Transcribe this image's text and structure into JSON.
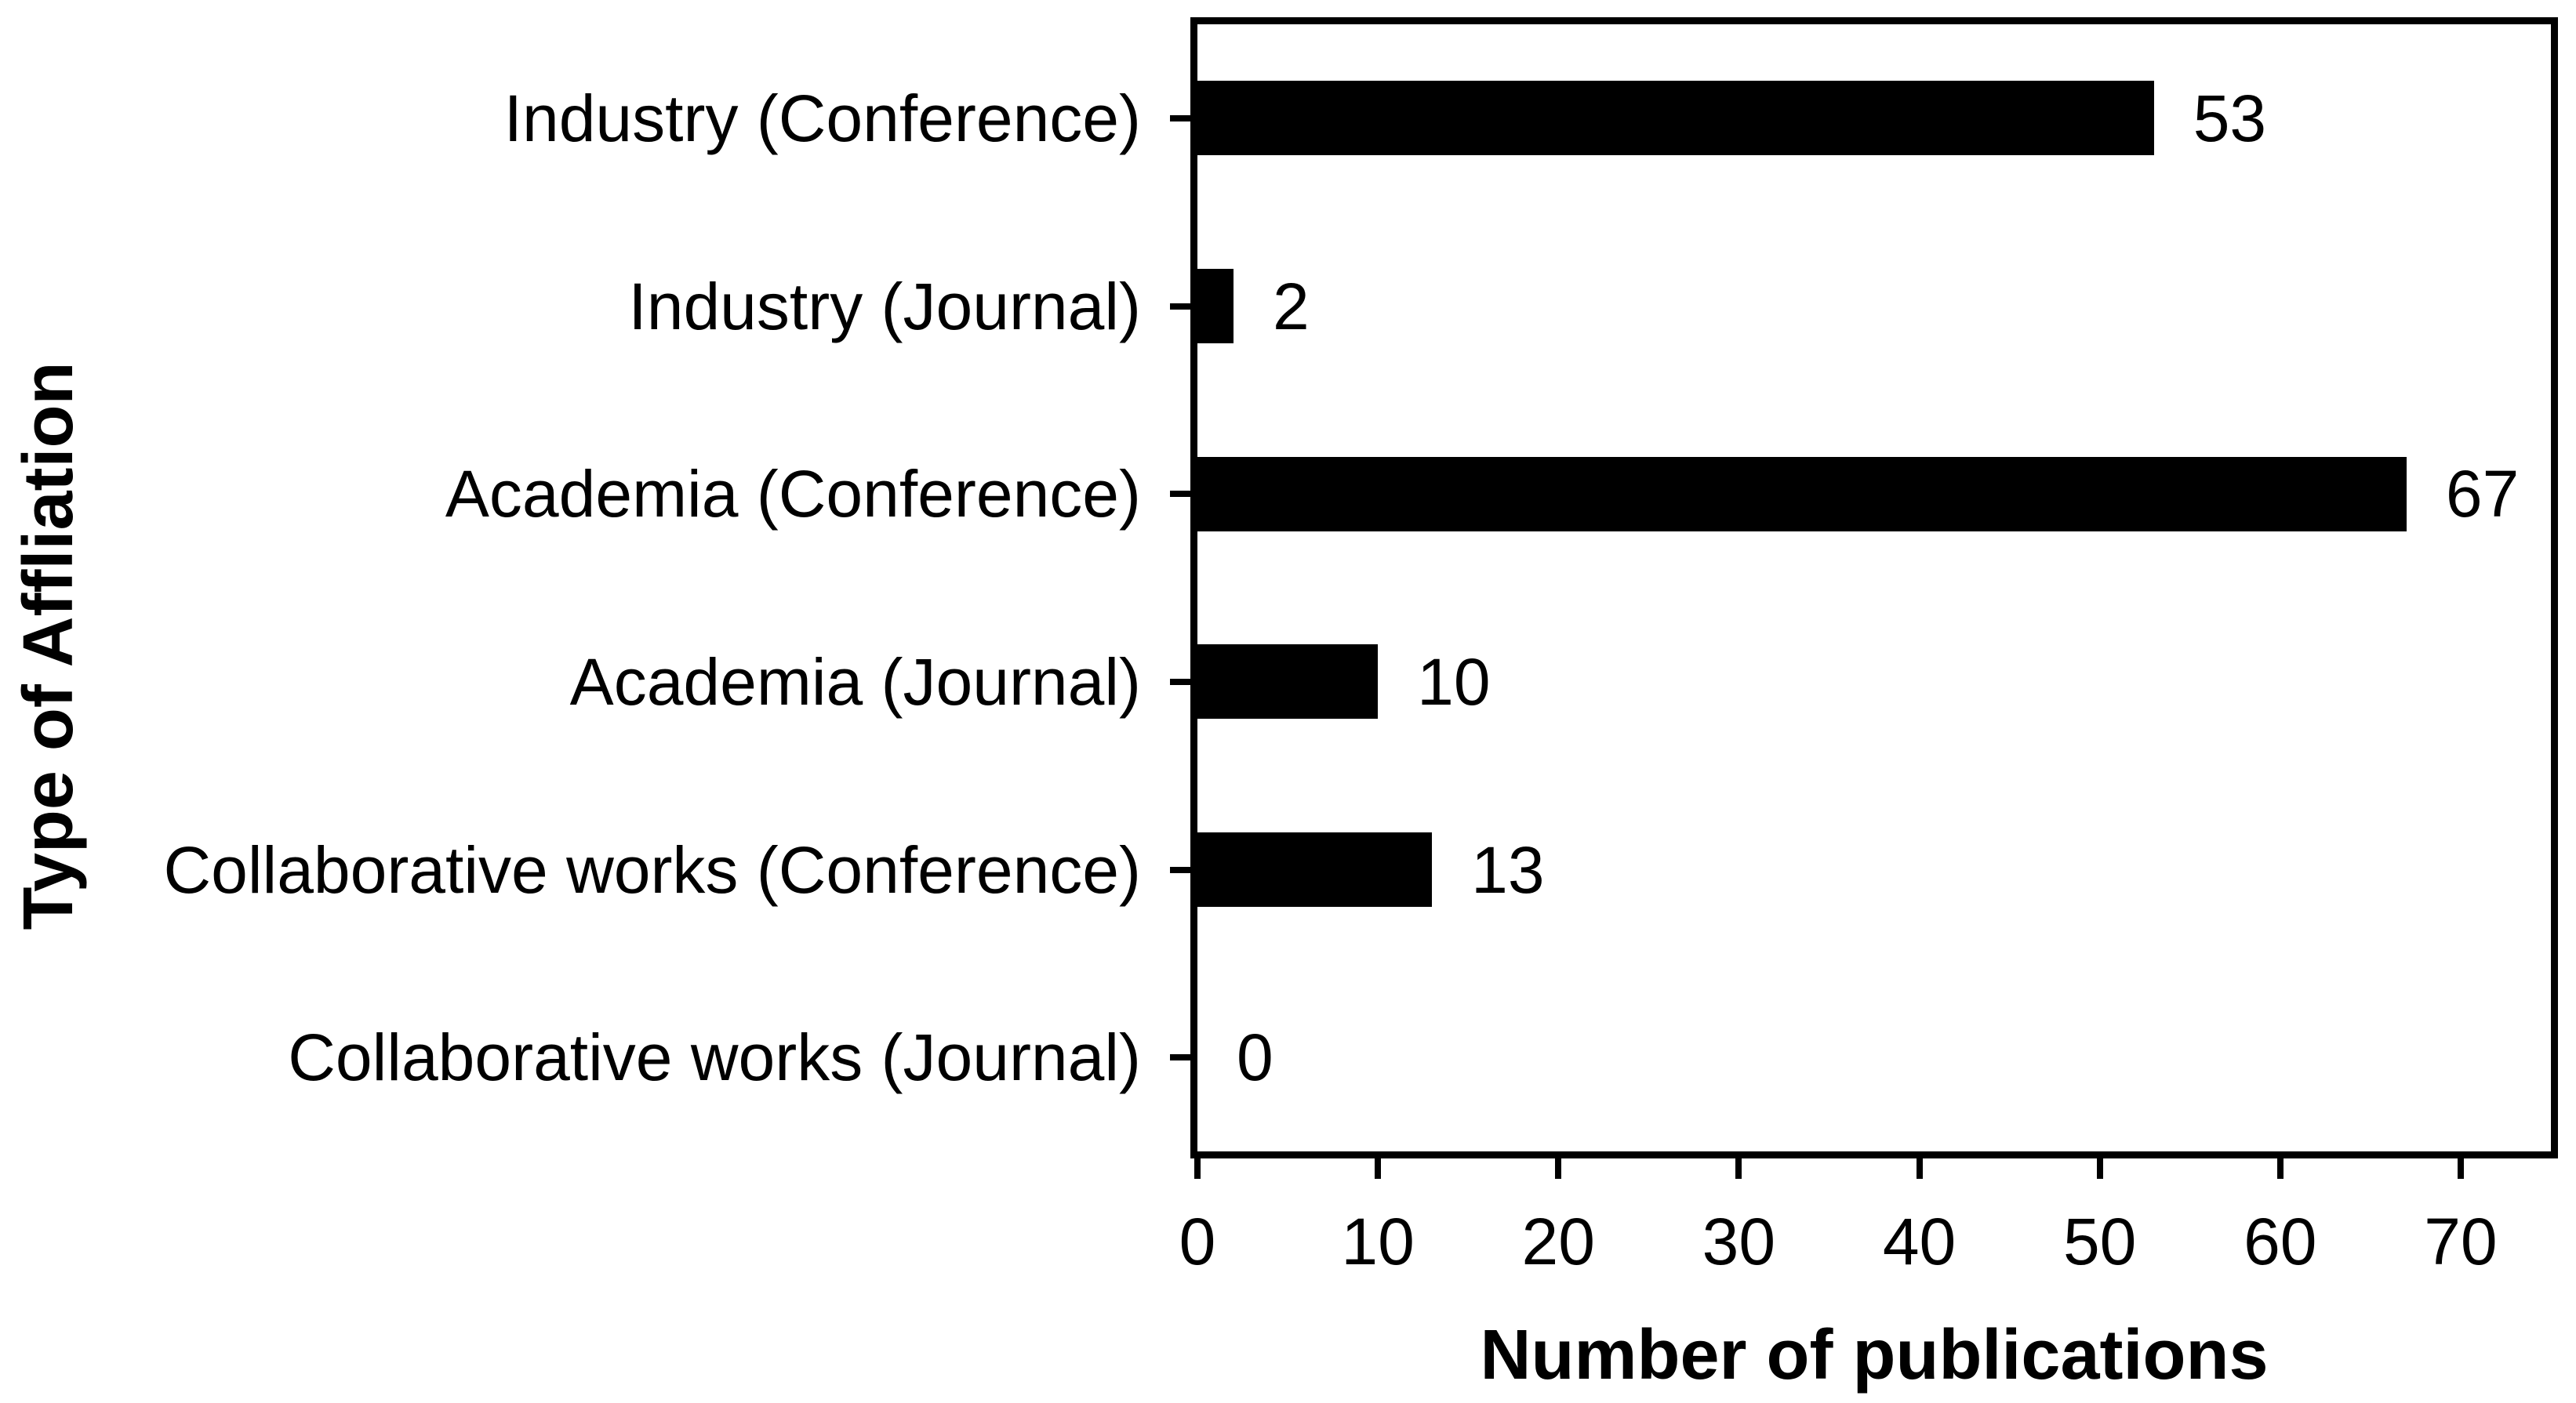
{
  "chart_data": {
    "type": "bar",
    "orientation": "horizontal",
    "title": "",
    "xlabel": "Number of publications",
    "ylabel": "Type of Affliation",
    "categories": [
      "Industry (Conference)",
      "Industry (Journal)",
      "Academia (Conference)",
      "Academia (Journal)",
      "Collaborative works (Conference)",
      "Collaborative works (Journal)"
    ],
    "values": [
      53,
      2,
      67,
      10,
      13,
      0
    ],
    "value_labels": [
      "53",
      "2",
      "67",
      "10",
      "13",
      "0"
    ],
    "xticks": [
      "0",
      "10",
      "20",
      "30",
      "40",
      "50",
      "60",
      "70"
    ],
    "xtick_values": [
      0,
      10,
      20,
      30,
      40,
      50,
      60,
      70
    ],
    "xlim": [
      0,
      75
    ],
    "grid": false,
    "legend_position": "none",
    "bar_color": "#000000",
    "frame_color": "#000000",
    "background_color": "#ffffff"
  }
}
